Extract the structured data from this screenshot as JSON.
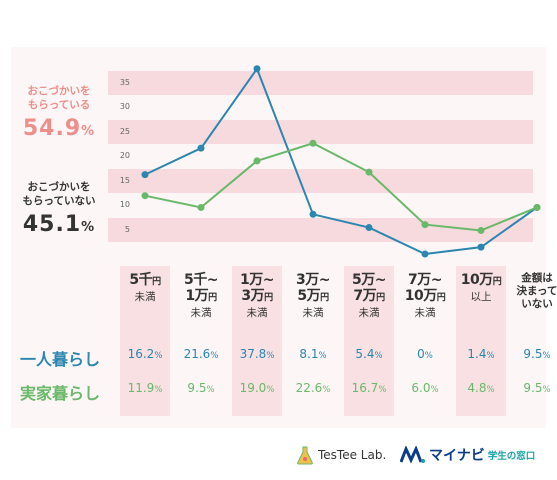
{
  "summary": {
    "receiving": {
      "label_line1": "おこづかいを",
      "label_line2": "もらっている",
      "value": "54.9",
      "unit": "%",
      "color": "#ee8e8b"
    },
    "not_receiving": {
      "label_line1": "おこづかいを",
      "label_line2": "もらっていない",
      "value": "45.1",
      "unit": "%",
      "color": "#333333"
    }
  },
  "categories": [
    {
      "line1": "5千",
      "line1_unit": "円",
      "line2": "未満",
      "line3": ""
    },
    {
      "line1": "5千~",
      "line1_unit": "",
      "line2": "1万",
      "line2_unit": "円",
      "line3": "未満"
    },
    {
      "line1": "1万~",
      "line1_unit": "",
      "line2": "3万",
      "line2_unit": "円",
      "line3": "未満"
    },
    {
      "line1": "3万~",
      "line1_unit": "",
      "line2": "5万",
      "line2_unit": "円",
      "line3": "未満"
    },
    {
      "line1": "5万~",
      "line1_unit": "",
      "line2": "7万",
      "line2_unit": "円",
      "line3": "未満"
    },
    {
      "line1": "7万~",
      "line1_unit": "",
      "line2": "10万",
      "line2_unit": "円",
      "line3": "未満"
    },
    {
      "line1": "10万",
      "line1_unit": "円",
      "line2": "以上",
      "line3": ""
    },
    {
      "line1": "金額は",
      "line1_unit": "",
      "line2": "決まって",
      "line3": "いない"
    }
  ],
  "rows": [
    {
      "name": "一人暮らし",
      "color": "#2b86b0",
      "values": [
        "16.2",
        "21.6",
        "37.8",
        "8.1",
        "5.4",
        "0",
        "1.4",
        "9.5"
      ]
    },
    {
      "name": "実家暮らし",
      "color": "#6ab86a",
      "values": [
        "11.9",
        "9.5",
        "19.0",
        "22.6",
        "16.7",
        "6.0",
        "4.8",
        "9.5"
      ]
    }
  ],
  "unit": "%",
  "logos": {
    "testee": "TesTee Lab.",
    "mynavi_name": "マイナビ",
    "mynavi_sub": "学生の窓口"
  },
  "chart_data": {
    "type": "line",
    "categories": [
      "5千円未満",
      "5千~1万円未満",
      "1万~3万円未満",
      "3万~5万円未満",
      "5万~7万円未満",
      "7万~10万円未満",
      "10万円以上",
      "金額は決まっていない"
    ],
    "series": [
      {
        "name": "一人暮らし",
        "color": "#2b86b0",
        "values": [
          16.2,
          21.6,
          37.8,
          8.1,
          5.4,
          0,
          1.4,
          9.5
        ]
      },
      {
        "name": "実家暮らし",
        "color": "#6ab86a",
        "values": [
          11.9,
          9.5,
          19.0,
          22.6,
          16.7,
          6.0,
          4.8,
          9.5
        ]
      }
    ],
    "yticks": [
      5,
      10,
      15,
      20,
      25,
      30,
      35
    ],
    "ylim": [
      0,
      40
    ],
    "grid": "horizontal bands"
  }
}
